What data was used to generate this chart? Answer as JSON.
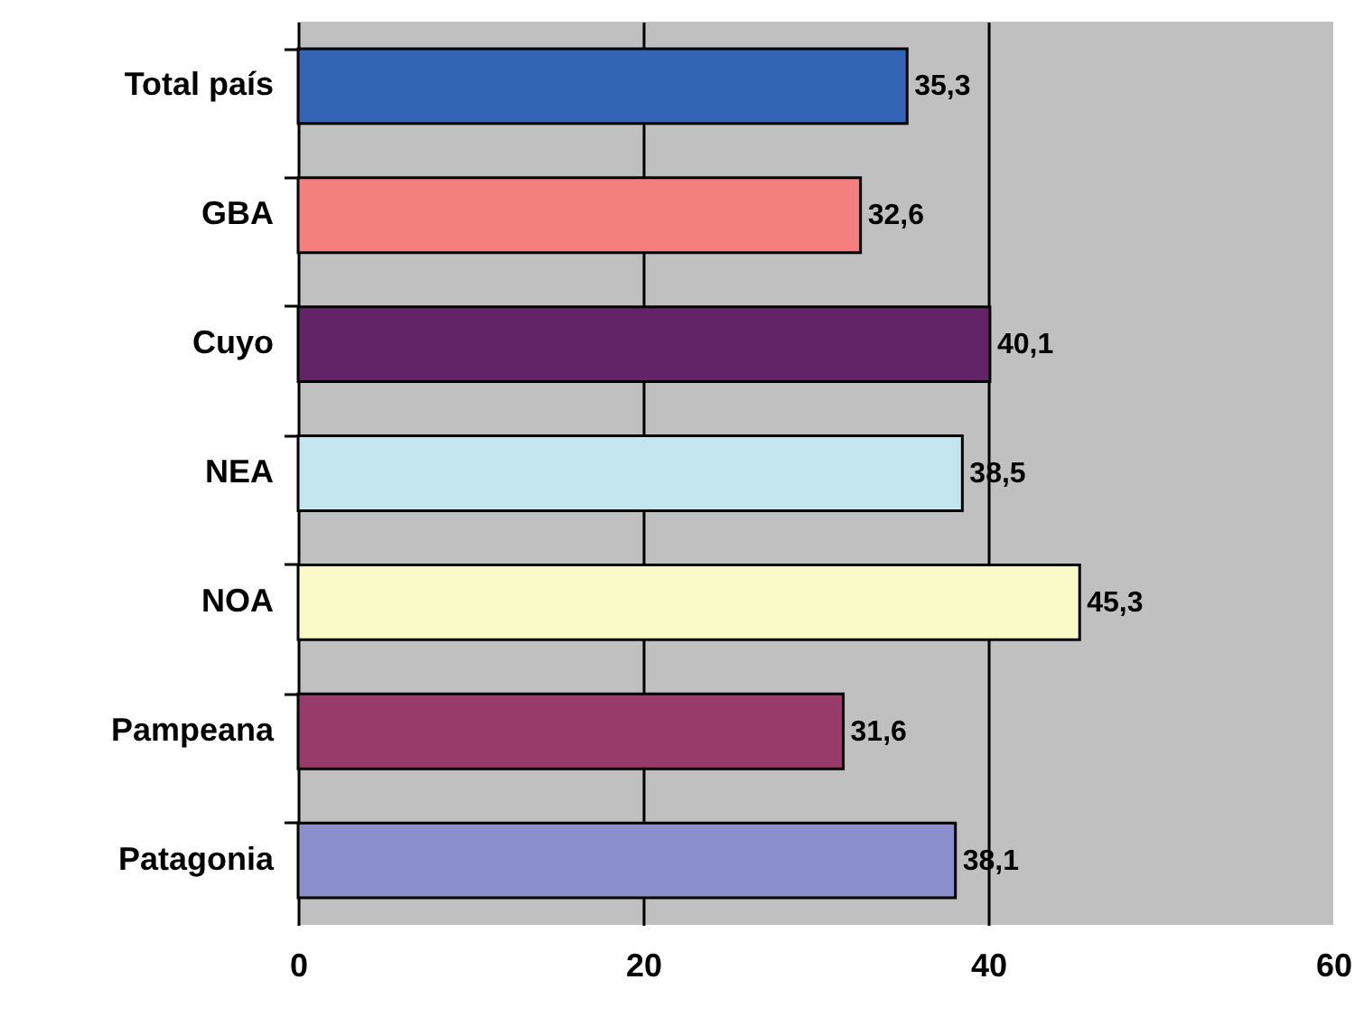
{
  "chart_data": {
    "type": "bar",
    "orientation": "horizontal",
    "categories": [
      "Total país",
      "GBA",
      "Cuyo",
      "NEA",
      "NOA",
      "Pampeana",
      "Patagonia"
    ],
    "values": [
      35.3,
      32.6,
      40.1,
      38.5,
      45.3,
      31.6,
      38.1
    ],
    "value_labels": [
      "35,3",
      "32,6",
      "40,1",
      "38,5",
      "45,3",
      "31,6",
      "38,1"
    ],
    "colors": [
      "#3465b5",
      "#f47f7f",
      "#622466",
      "#c3e6ef",
      "#fafac8",
      "#983a6a",
      "#8b8fcb"
    ],
    "xlim": [
      0,
      60
    ],
    "xticks": [
      0,
      20,
      40,
      60
    ],
    "grid": "x"
  }
}
